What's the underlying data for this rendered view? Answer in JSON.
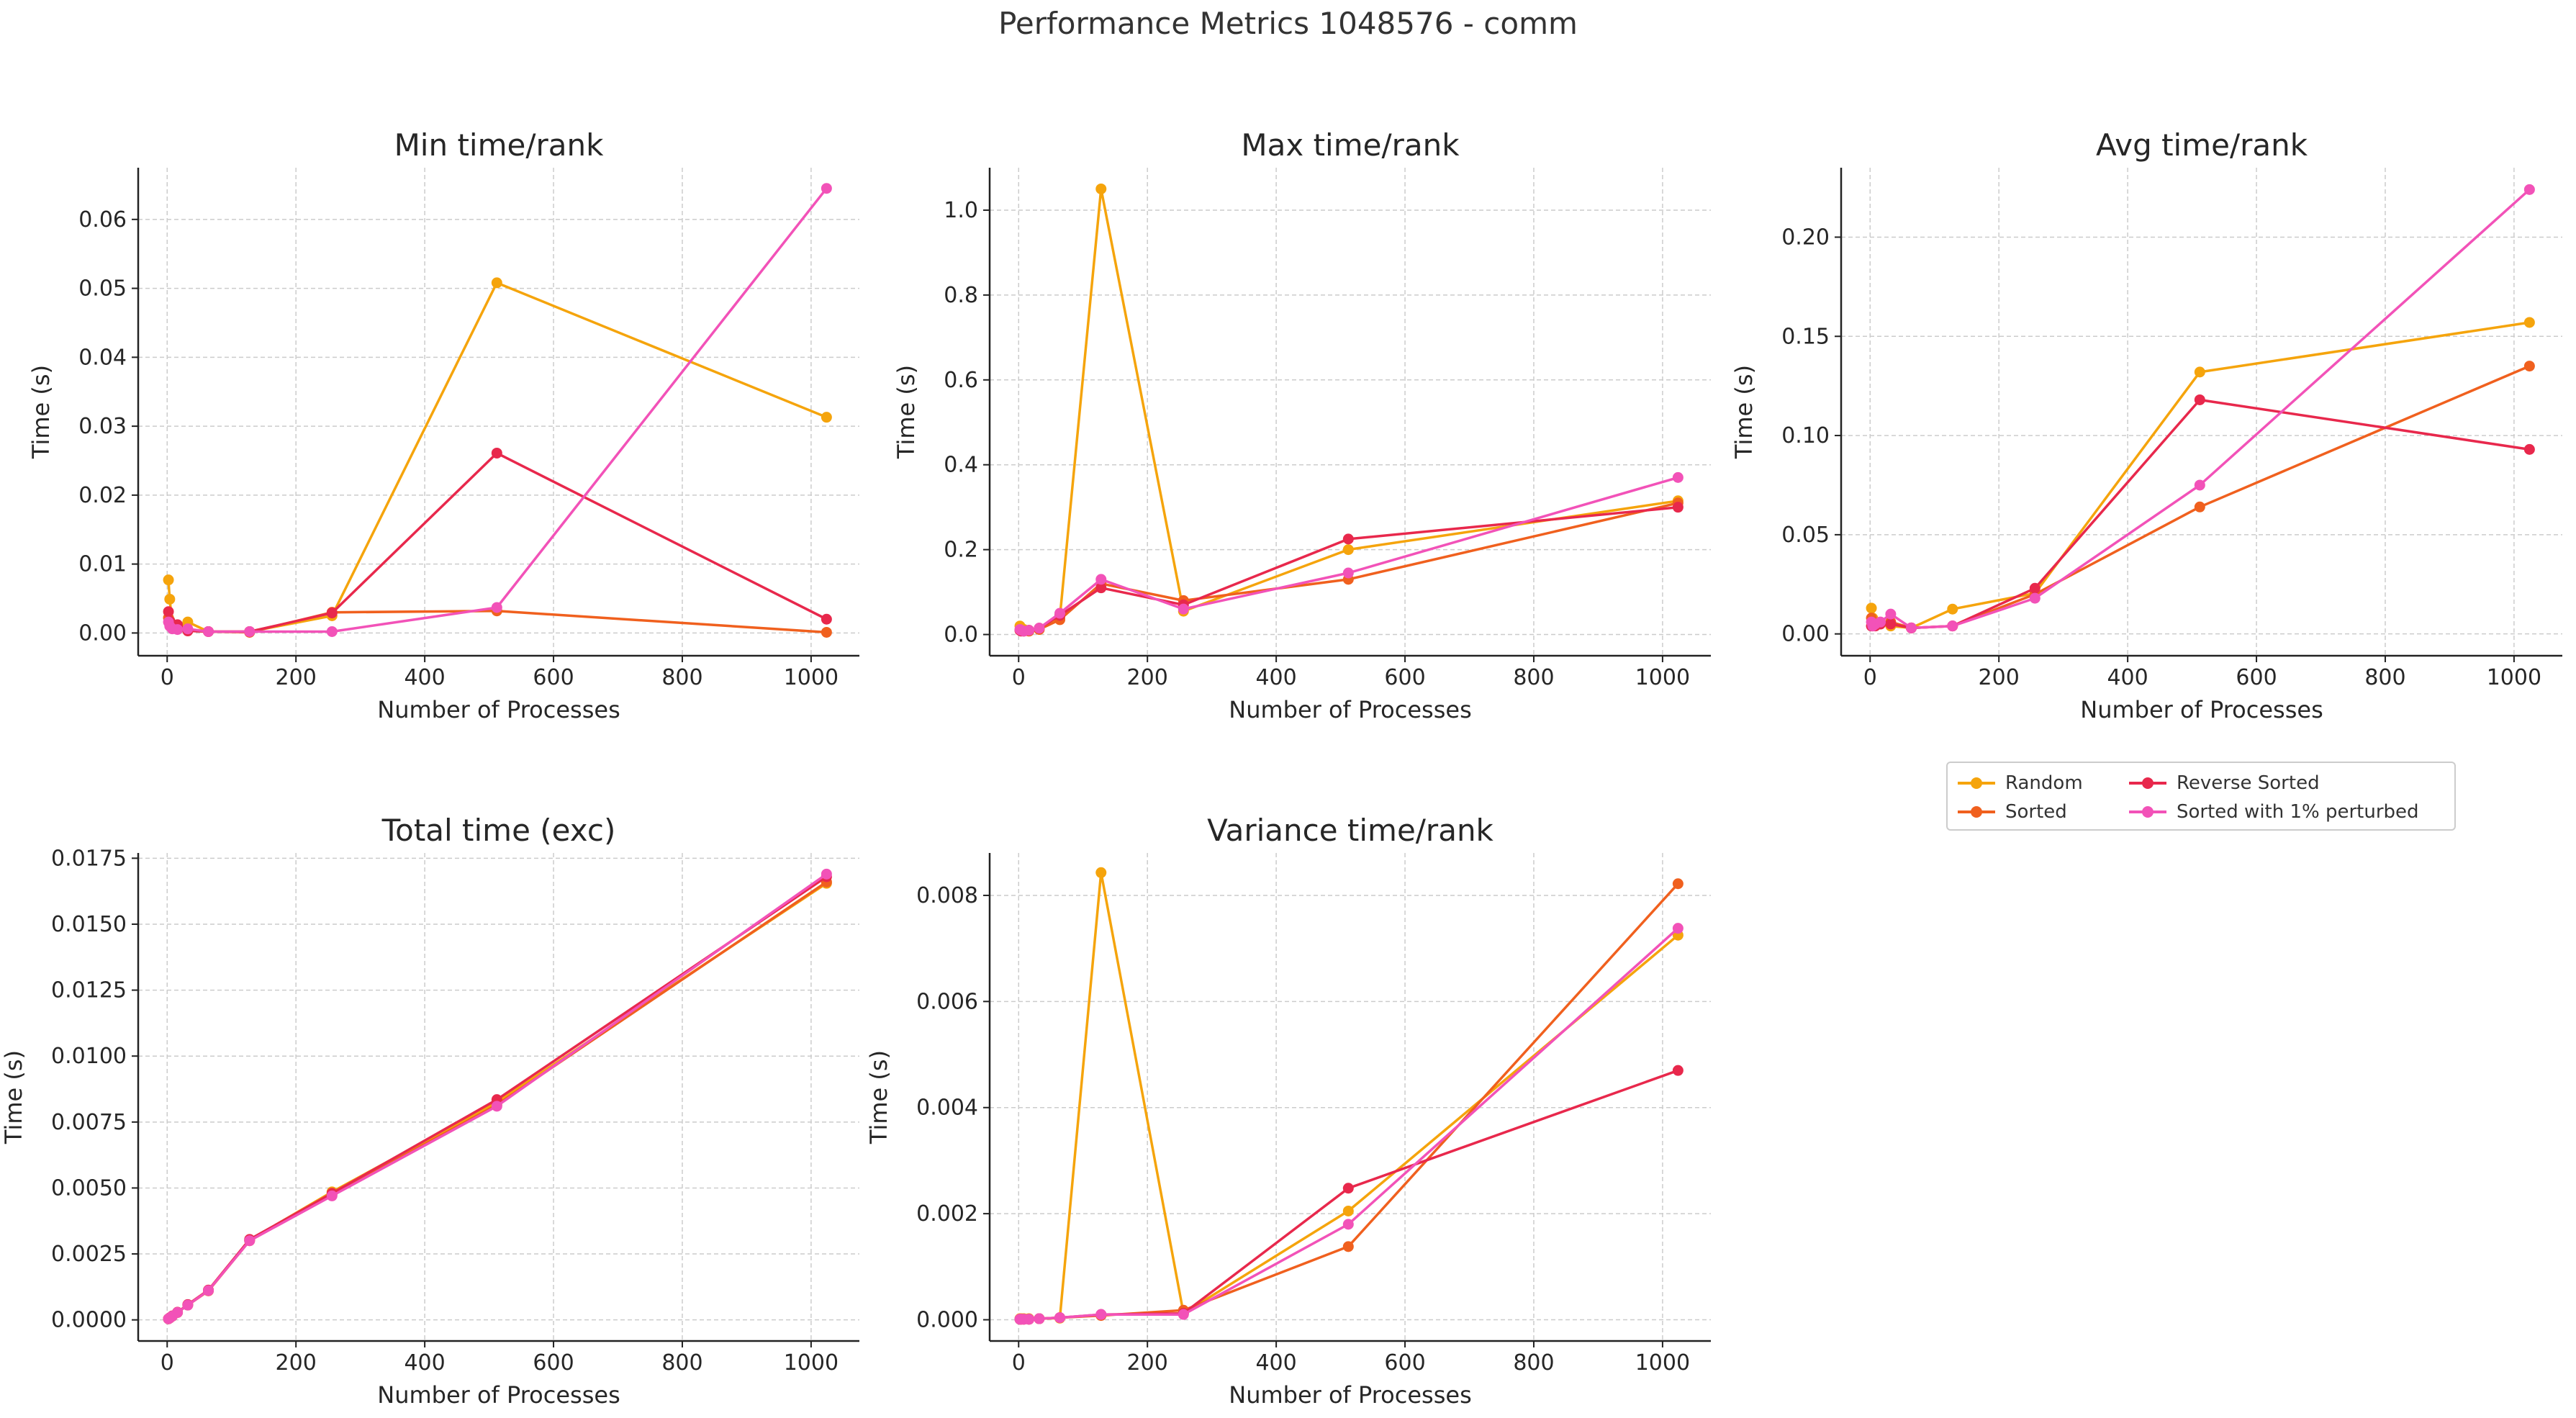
{
  "suptitle": "Performance Metrics 1048576 - comm",
  "colors": {
    "Random": "#f5a40c",
    "Sorted": "#f0601e",
    "Reverse Sorted": "#e8284c",
    "Sorted with 1% perturbed": "#f252b8"
  },
  "legend": {
    "entries": [
      "Random",
      "Reverse Sorted",
      "Sorted",
      "Sorted with 1% perturbed"
    ]
  },
  "chart_data": [
    {
      "type": "line",
      "title": "Min time/rank",
      "xlabel": "Number of Processes",
      "ylabel": "Time (s)",
      "xlim": [
        -45,
        1075
      ],
      "ylim": [
        -0.0033,
        0.0675
      ],
      "xticks": [
        0,
        200,
        400,
        600,
        800,
        1000
      ],
      "yticks": [
        0.0,
        0.01,
        0.02,
        0.03,
        0.04,
        0.05,
        0.06
      ],
      "ytick_labels": [
        "0.00",
        "0.01",
        "0.02",
        "0.03",
        "0.04",
        "0.05",
        "0.06"
      ],
      "x": [
        2,
        4,
        8,
        16,
        32,
        64,
        128,
        256,
        512,
        1024
      ],
      "series": [
        {
          "name": "Random",
          "values": [
            0.0077,
            0.0049,
            0.0012,
            0.0006,
            0.0016,
            0.0002,
            0.0002,
            0.0025,
            0.0508,
            0.0313
          ]
        },
        {
          "name": "Sorted",
          "values": [
            0.0022,
            0.0018,
            0.001,
            0.0008,
            0.0005,
            0.0002,
            0.0001,
            0.003,
            0.0032,
            0.0001
          ]
        },
        {
          "name": "Reverse Sorted",
          "values": [
            0.0031,
            0.0017,
            0.0008,
            0.0012,
            0.0003,
            0.0002,
            0.0002,
            0.0029,
            0.0261,
            0.002
          ]
        },
        {
          "name": "Sorted with 1% perturbed",
          "values": [
            0.0016,
            0.001,
            0.0006,
            0.0005,
            0.0006,
            0.0002,
            0.0002,
            0.0002,
            0.0037,
            0.0645
          ]
        }
      ]
    },
    {
      "type": "line",
      "title": "Max time/rank",
      "xlabel": "Number of Processes",
      "ylabel": "Time (s)",
      "xlim": [
        -45,
        1075
      ],
      "ylim": [
        -0.05,
        1.1
      ],
      "xticks": [
        0,
        200,
        400,
        600,
        800,
        1000
      ],
      "yticks": [
        0.0,
        0.2,
        0.4,
        0.6,
        0.8,
        1.0
      ],
      "ytick_labels": [
        "0.0",
        "0.2",
        "0.4",
        "0.6",
        "0.8",
        "1.0"
      ],
      "x": [
        2,
        4,
        8,
        16,
        32,
        64,
        128,
        256,
        512,
        1024
      ],
      "series": [
        {
          "name": "Random",
          "values": [
            0.02,
            0.015,
            0.012,
            0.01,
            0.012,
            0.04,
            1.05,
            0.055,
            0.2,
            0.315
          ]
        },
        {
          "name": "Sorted",
          "values": [
            0.01,
            0.01,
            0.008,
            0.008,
            0.012,
            0.035,
            0.12,
            0.08,
            0.13,
            0.31
          ]
        },
        {
          "name": "Reverse Sorted",
          "values": [
            0.01,
            0.008,
            0.008,
            0.01,
            0.015,
            0.045,
            0.11,
            0.07,
            0.225,
            0.3
          ]
        },
        {
          "name": "Sorted with 1% perturbed",
          "values": [
            0.012,
            0.01,
            0.008,
            0.01,
            0.015,
            0.05,
            0.13,
            0.06,
            0.145,
            0.37
          ]
        }
      ]
    },
    {
      "type": "line",
      "title": "Avg time/rank",
      "xlabel": "Number of Processes",
      "ylabel": "Time (s)",
      "xlim": [
        -45,
        1075
      ],
      "ylim": [
        -0.011,
        0.235
      ],
      "xticks": [
        0,
        200,
        400,
        600,
        800,
        1000
      ],
      "yticks": [
        0.0,
        0.05,
        0.1,
        0.15,
        0.2
      ],
      "ytick_labels": [
        "0.00",
        "0.05",
        "0.10",
        "0.15",
        "0.20"
      ],
      "x": [
        2,
        4,
        8,
        16,
        32,
        64,
        128,
        256,
        512,
        1024
      ],
      "series": [
        {
          "name": "Random",
          "values": [
            0.013,
            0.008,
            0.006,
            0.005,
            0.004,
            0.003,
            0.0125,
            0.0205,
            0.132,
            0.157
          ]
        },
        {
          "name": "Sorted",
          "values": [
            0.008,
            0.006,
            0.005,
            0.005,
            0.006,
            0.003,
            0.004,
            0.02,
            0.064,
            0.135
          ]
        },
        {
          "name": "Reverse Sorted",
          "values": [
            0.004,
            0.004,
            0.004,
            0.005,
            0.005,
            0.003,
            0.004,
            0.023,
            0.118,
            0.093
          ]
        },
        {
          "name": "Sorted with 1% perturbed",
          "values": [
            0.006,
            0.004,
            0.005,
            0.006,
            0.01,
            0.003,
            0.004,
            0.018,
            0.075,
            0.224
          ]
        }
      ]
    },
    {
      "type": "line",
      "title": "Total time (exc)",
      "xlabel": "Number of Processes",
      "ylabel": "Time (s)",
      "xlim": [
        -45,
        1075
      ],
      "ylim": [
        -0.0008,
        0.0177
      ],
      "xticks": [
        0,
        200,
        400,
        600,
        800,
        1000
      ],
      "yticks": [
        0.0,
        0.0025,
        0.005,
        0.0075,
        0.01,
        0.0125,
        0.015,
        0.0175
      ],
      "ytick_labels": [
        "0.0000",
        "0.0025",
        "0.0050",
        "0.0075",
        "0.0100",
        "0.0125",
        "0.0150",
        "0.0175"
      ],
      "x": [
        2,
        4,
        8,
        16,
        32,
        64,
        128,
        256,
        512,
        1024
      ],
      "series": [
        {
          "name": "Random",
          "values": [
            4e-05,
            7e-05,
            0.00014,
            0.00028,
            0.00057,
            0.00112,
            0.00302,
            0.00485,
            0.00825,
            0.01655
          ]
        },
        {
          "name": "Sorted",
          "values": [
            4e-05,
            7e-05,
            0.00014,
            0.00028,
            0.00056,
            0.0011,
            0.003,
            0.00475,
            0.00815,
            0.0166
          ]
        },
        {
          "name": "Reverse Sorted",
          "values": [
            4e-05,
            8e-05,
            0.00015,
            0.00029,
            0.00058,
            0.00113,
            0.00305,
            0.0048,
            0.00835,
            0.0168
          ]
        },
        {
          "name": "Sorted with 1% perturbed",
          "values": [
            4e-05,
            7e-05,
            0.00014,
            0.00028,
            0.00056,
            0.00111,
            0.003,
            0.0047,
            0.0081,
            0.0169
          ]
        }
      ]
    },
    {
      "type": "line",
      "title": "Variance time/rank",
      "xlabel": "Number of Processes",
      "ylabel": "Time (s)",
      "xlim": [
        -45,
        1075
      ],
      "ylim": [
        -0.0004,
        0.0088
      ],
      "xticks": [
        0,
        200,
        400,
        600,
        800,
        1000
      ],
      "yticks": [
        0.0,
        0.002,
        0.004,
        0.006,
        0.008
      ],
      "ytick_labels": [
        "0.000",
        "0.002",
        "0.004",
        "0.006",
        "0.008"
      ],
      "x": [
        2,
        4,
        8,
        16,
        32,
        64,
        128,
        256,
        512,
        1024
      ],
      "series": [
        {
          "name": "Random",
          "values": [
            2e-05,
            2e-05,
            2e-05,
            2e-05,
            2e-05,
            3e-05,
            0.00843,
            0.00012,
            0.00205,
            0.00725
          ]
        },
        {
          "name": "Sorted",
          "values": [
            1e-05,
            1e-05,
            1e-05,
            1e-05,
            2e-05,
            4e-05,
            8e-05,
            0.00018,
            0.00138,
            0.00822
          ]
        },
        {
          "name": "Reverse Sorted",
          "values": [
            1e-05,
            1e-05,
            1e-05,
            1e-05,
            2e-05,
            4e-05,
            0.0001,
            0.00012,
            0.00248,
            0.0047
          ]
        },
        {
          "name": "Sorted with 1% perturbed",
          "values": [
            1e-05,
            1e-05,
            1e-05,
            1e-05,
            2e-05,
            4e-05,
            0.0001,
            0.0001,
            0.0018,
            0.00738
          ]
        }
      ]
    }
  ]
}
